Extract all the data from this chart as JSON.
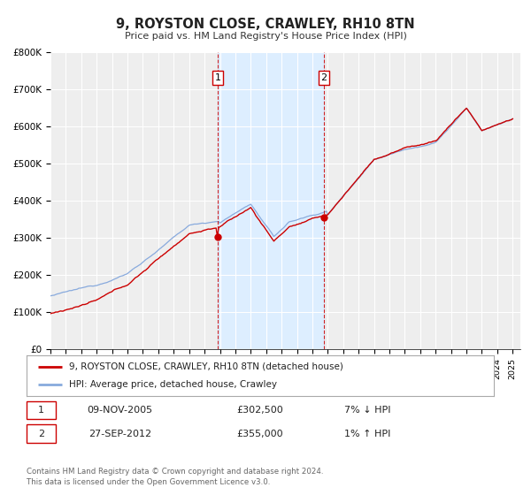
{
  "title": "9, ROYSTON CLOSE, CRAWLEY, RH10 8TN",
  "subtitle": "Price paid vs. HM Land Registry's House Price Index (HPI)",
  "ylim": [
    0,
    800000
  ],
  "yticks": [
    0,
    100000,
    200000,
    300000,
    400000,
    500000,
    600000,
    700000,
    800000
  ],
  "ytick_labels": [
    "£0",
    "£100K",
    "£200K",
    "£300K",
    "£400K",
    "£500K",
    "£600K",
    "£700K",
    "£800K"
  ],
  "xlim_start": 1995.0,
  "xlim_end": 2025.5,
  "background_color": "#ffffff",
  "plot_bg_color": "#eeeeee",
  "grid_color": "#ffffff",
  "sale1_x": 2005.86,
  "sale1_y": 302500,
  "sale2_x": 2012.74,
  "sale2_y": 355000,
  "shade_color": "#ddeeff",
  "legend_line1": "9, ROYSTON CLOSE, CRAWLEY, RH10 8TN (detached house)",
  "legend_line2": "HPI: Average price, detached house, Crawley",
  "sale1_date": "09-NOV-2005",
  "sale1_price": "£302,500",
  "sale1_hpi": "7% ↓ HPI",
  "sale2_date": "27-SEP-2012",
  "sale2_price": "£355,000",
  "sale2_hpi": "1% ↑ HPI",
  "footer": "Contains HM Land Registry data © Crown copyright and database right 2024.\nThis data is licensed under the Open Government Licence v3.0.",
  "sale_color": "#cc0000",
  "hpi_color": "#88aadd",
  "label_box_color": "#cc0000"
}
